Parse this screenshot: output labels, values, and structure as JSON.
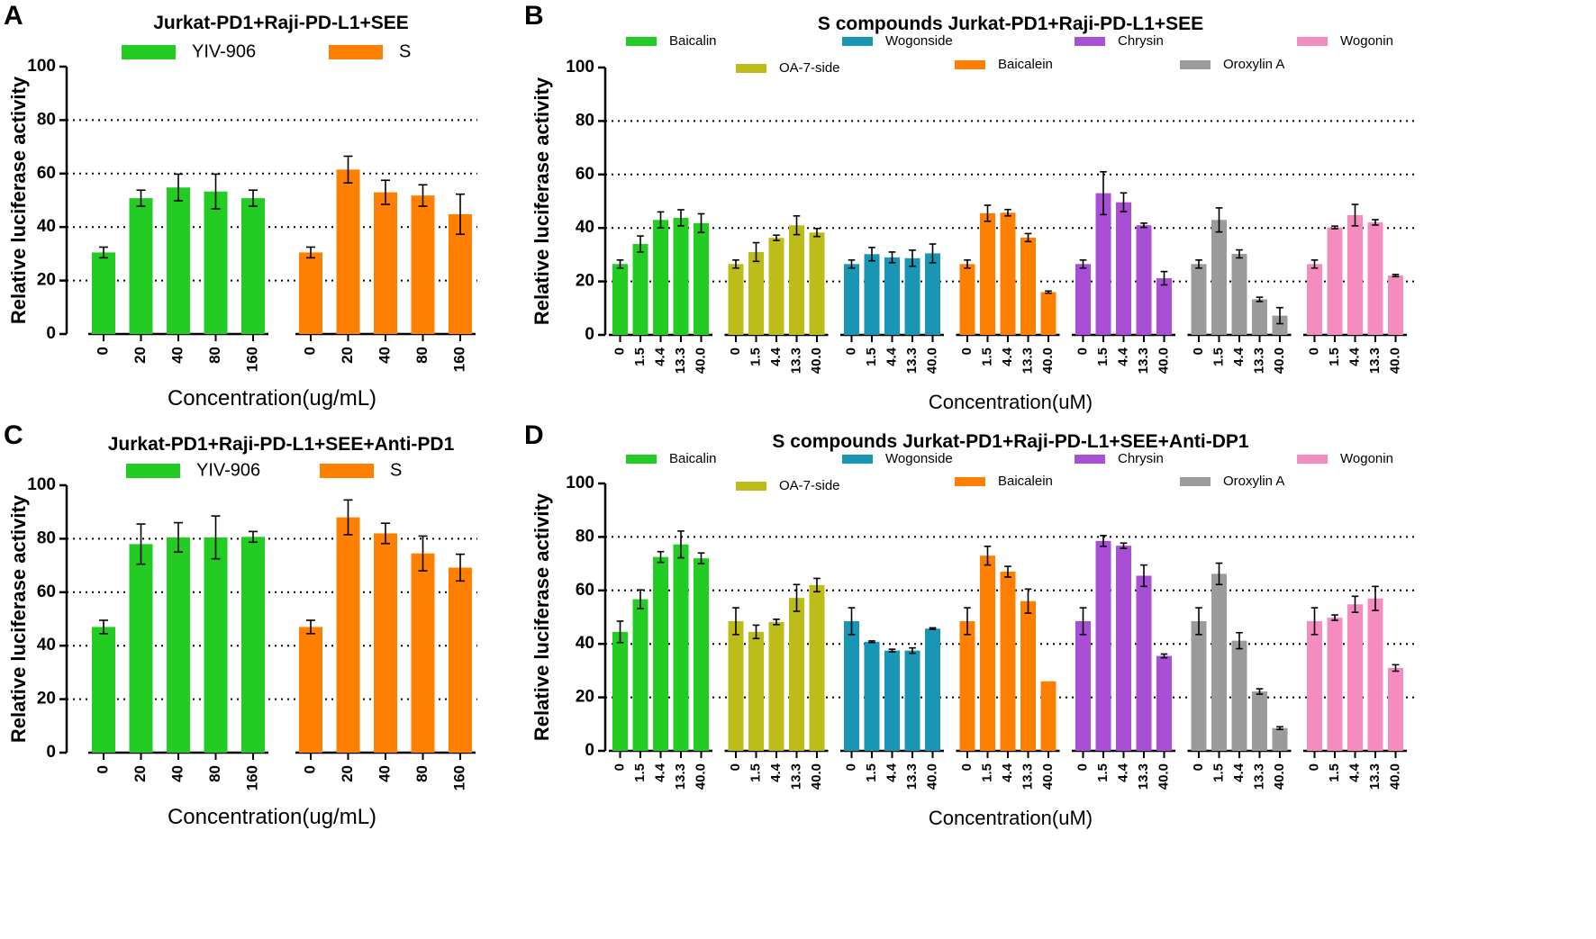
{
  "chart_data": [
    {
      "panel": "A",
      "type": "bar",
      "title": "Jurkat-PD1+Raji-PD-L1+SEE",
      "xlabel": "Concentration(ug/mL)",
      "ylabel": "Relative luciferase activity",
      "ylim": [
        0,
        100
      ],
      "yticks": [
        0,
        20,
        40,
        60,
        80,
        100
      ],
      "grid_lines": [
        20,
        40,
        60,
        80
      ],
      "categories": [
        "0",
        "20",
        "40",
        "80",
        "160"
      ],
      "series": [
        {
          "name": "YIV-906",
          "color": "#22cc22",
          "values": [
            30.5,
            50.8,
            54.8,
            53.3,
            50.8
          ],
          "errors": [
            2,
            3,
            5,
            6.5,
            3
          ]
        },
        {
          "name": "S",
          "color": "#ff8000",
          "values": [
            30.5,
            61.5,
            53,
            51.8,
            44.8
          ],
          "errors": [
            2,
            5,
            4.5,
            4,
            7.5
          ]
        }
      ]
    },
    {
      "panel": "B",
      "type": "bar",
      "title": "S compounds Jurkat-PD1+Raji-PD-L1+SEE",
      "xlabel": "Concentration(uM)",
      "ylabel": "Relative luciferase activity",
      "ylim": [
        0,
        100
      ],
      "yticks": [
        0,
        20,
        40,
        60,
        80,
        100
      ],
      "grid_lines": [
        20,
        40,
        60,
        80
      ],
      "categories": [
        "0",
        "1.5",
        "4.4",
        "13.3",
        "40.0"
      ],
      "series": [
        {
          "name": "Baicalin",
          "color": "#22cc22",
          "values": [
            26.5,
            34,
            43,
            43.8,
            41.8
          ],
          "errors": [
            1.5,
            3,
            3,
            3,
            3.5
          ]
        },
        {
          "name": "OA-7-side",
          "color": "#bdbd1a",
          "values": [
            26.5,
            31,
            36.3,
            41,
            38.3
          ],
          "errors": [
            1.5,
            3.5,
            1,
            3.5,
            1.5
          ]
        },
        {
          "name": "Wogonside",
          "color": "#1a96b5",
          "values": [
            26.5,
            30.2,
            29,
            28.7,
            30.5
          ],
          "errors": [
            1.5,
            2.5,
            2,
            3,
            3.5
          ]
        },
        {
          "name": "Baicalein",
          "color": "#ff8000",
          "values": [
            26.5,
            45.5,
            45.7,
            36.4,
            16
          ],
          "errors": [
            1.5,
            3,
            1.2,
            1.5,
            0.4
          ]
        },
        {
          "name": "Chrysin",
          "color": "#a94fd6",
          "values": [
            26.5,
            53,
            49.6,
            41,
            21.2
          ],
          "errors": [
            1.5,
            8,
            3.5,
            0.8,
            2.5
          ]
        },
        {
          "name": "Oroxylin A",
          "color": "#9b9b9b",
          "values": [
            26.5,
            43,
            30.3,
            13.3,
            7.2
          ],
          "errors": [
            1.5,
            4.5,
            1.5,
            0.8,
            3
          ]
        },
        {
          "name": "Wogonin",
          "color": "#f58cc0",
          "values": [
            26.5,
            40.2,
            44.8,
            42.1,
            22.2
          ],
          "errors": [
            1.5,
            0.5,
            4,
            1,
            0.4
          ]
        }
      ]
    },
    {
      "panel": "C",
      "type": "bar",
      "title": "Jurkat-PD1+Raji-PD-L1+SEE+Anti-PD1",
      "xlabel": "Concentration(ug/mL)",
      "ylabel": "Relative luciferase activity",
      "ylim": [
        0,
        100
      ],
      "yticks": [
        0,
        20,
        40,
        60,
        80,
        100
      ],
      "grid_lines": [
        20,
        40,
        60,
        80
      ],
      "categories": [
        "0",
        "20",
        "40",
        "80",
        "160"
      ],
      "series": [
        {
          "name": "YIV-906",
          "color": "#22cc22",
          "values": [
            47,
            78,
            80.5,
            80.5,
            80.7
          ],
          "errors": [
            2.5,
            7.5,
            5.5,
            8,
            2
          ]
        },
        {
          "name": "S",
          "color": "#ff8000",
          "values": [
            47,
            88,
            82,
            74.5,
            69.2
          ],
          "errors": [
            2.5,
            6.5,
            3.8,
            6.5,
            5
          ]
        }
      ]
    },
    {
      "panel": "D",
      "type": "bar",
      "title": "S compounds Jurkat-PD1+Raji-PD-L1+SEE+Anti-DP1",
      "xlabel": "Concentration(uM)",
      "ylabel": "Relative luciferase activity",
      "ylim": [
        0,
        100
      ],
      "yticks": [
        0,
        20,
        40,
        60,
        80,
        100
      ],
      "grid_lines": [
        20,
        40,
        60,
        80
      ],
      "categories": [
        "0",
        "1.5",
        "4.4",
        "13.3",
        "40.0"
      ],
      "series": [
        {
          "name": "Baicalin",
          "color": "#22cc22",
          "values": [
            44.5,
            56.7,
            72.5,
            77.2,
            72
          ],
          "errors": [
            4,
            3.5,
            2,
            5,
            2
          ]
        },
        {
          "name": "OA-7-side",
          "color": "#bdbd1a",
          "values": [
            48.5,
            44.5,
            48.2,
            57.2,
            62
          ],
          "errors": [
            5,
            2.5,
            1,
            5,
            2.5
          ]
        },
        {
          "name": "Wogonside",
          "color": "#1a96b5",
          "values": [
            48.5,
            40.8,
            37.5,
            37.5,
            45.7
          ],
          "errors": [
            5,
            0.3,
            0.5,
            1,
            0.3
          ]
        },
        {
          "name": "Baicalein",
          "color": "#ff8000",
          "values": [
            48.5,
            73,
            67,
            56,
            26
          ],
          "errors": [
            5,
            3.5,
            2,
            4.5,
            0
          ]
        },
        {
          "name": "Chrysin",
          "color": "#a94fd6",
          "values": [
            48.5,
            78.5,
            76.7,
            65.5,
            35.5
          ],
          "errors": [
            5,
            2,
            1,
            4,
            0.7
          ]
        },
        {
          "name": "Oroxylin A",
          "color": "#9b9b9b",
          "values": [
            48.5,
            66.2,
            41.2,
            22.2,
            8.5
          ],
          "errors": [
            5,
            4,
            3,
            1,
            0.5
          ]
        },
        {
          "name": "Wogonin",
          "color": "#f58cc0",
          "values": [
            48.5,
            49.8,
            54.8,
            57,
            31
          ],
          "errors": [
            5,
            1,
            3,
            4.5,
            1.2
          ]
        }
      ]
    }
  ]
}
